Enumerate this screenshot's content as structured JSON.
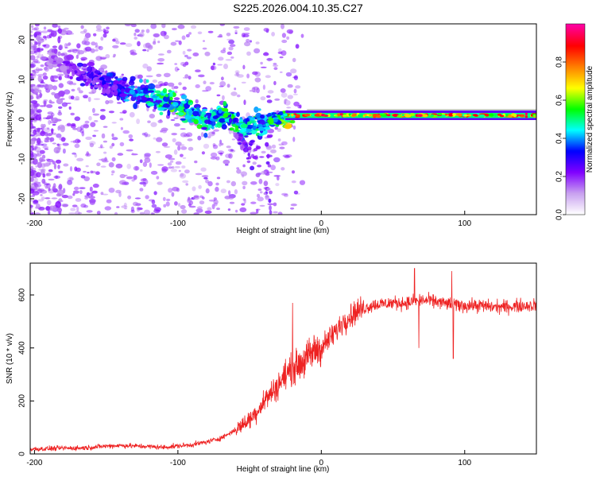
{
  "title": "S225.2026.004.10.35.C27",
  "chart_data": [
    {
      "type": "heatmap",
      "name": "spectrogram",
      "xlabel": "Height of straight line (km)",
      "ylabel": "Frequency (Hz)",
      "xlim": [
        -203,
        150
      ],
      "ylim": [
        -24,
        24
      ],
      "xticks": [
        -200,
        -100,
        0,
        100
      ],
      "yticks": [
        -20,
        -10,
        0,
        10,
        20
      ],
      "colorbar": {
        "label": "Normalized spectral amplitude",
        "range": [
          0,
          1
        ],
        "ticks": [
          "0.0",
          "0.2",
          "0.4",
          "0.6",
          "0.8"
        ],
        "tick_values": [
          0.0,
          0.2,
          0.4,
          0.6,
          0.8
        ],
        "colors": [
          "#ffffff",
          "#c8a0f0",
          "#8000ff",
          "#0000ff",
          "#00ffff",
          "#00ff00",
          "#ffff00",
          "#ff8000",
          "#ff0000",
          "#ff00a0"
        ]
      },
      "ridge": [
        {
          "x": -185,
          "freq": 15,
          "amp": 0.18
        },
        {
          "x": -165,
          "freq": 11,
          "amp": 0.28
        },
        {
          "x": -150,
          "freq": 9,
          "amp": 0.3
        },
        {
          "x": -135,
          "freq": 7,
          "amp": 0.4
        },
        {
          "x": -120,
          "freq": 6,
          "amp": 0.45
        },
        {
          "x": -105,
          "freq": 4,
          "amp": 0.55
        },
        {
          "x": -90,
          "freq": 2,
          "amp": 0.55
        },
        {
          "x": -80,
          "freq": -1,
          "amp": 0.45
        },
        {
          "x": -70,
          "freq": 1,
          "amp": 0.5
        },
        {
          "x": -55,
          "freq": -2,
          "amp": 0.5
        },
        {
          "x": -40,
          "freq": -1,
          "amp": 0.45
        },
        {
          "x": -30,
          "freq": 0,
          "amp": 0.55
        },
        {
          "x": -20,
          "freq": 0,
          "amp": 0.85
        },
        {
          "x": 0,
          "freq": 2,
          "amp": 0.7
        },
        {
          "x": 20,
          "freq": 1,
          "amp": 0.9
        },
        {
          "x": 50,
          "freq": 1,
          "amp": 0.9
        },
        {
          "x": 80,
          "freq": 1,
          "amp": 0.88
        },
        {
          "x": 110,
          "freq": 1,
          "amp": 0.9
        },
        {
          "x": 150,
          "freq": 1,
          "amp": 0.9
        }
      ]
    },
    {
      "type": "line",
      "name": "snr",
      "xlabel": "Height of straight line (km)",
      "ylabel": "SNR (10 * v/v)",
      "xlim": [
        -203,
        150
      ],
      "ylim": [
        0,
        720
      ],
      "xticks": [
        -200,
        -100,
        0,
        100
      ],
      "yticks": [
        0,
        200,
        400,
        600
      ],
      "color": "#ee2222",
      "series": [
        {
          "name": "SNR",
          "x": [
            -203,
            -190,
            -180,
            -170,
            -160,
            -150,
            -140,
            -130,
            -120,
            -110,
            -100,
            -90,
            -80,
            -70,
            -60,
            -50,
            -45,
            -40,
            -35,
            -30,
            -25,
            -20,
            -15,
            -10,
            -5,
            0,
            5,
            10,
            15,
            20,
            25,
            30,
            35,
            40,
            50,
            60,
            70,
            80,
            90,
            100,
            110,
            120,
            130,
            140,
            150
          ],
          "y": [
            18,
            20,
            22,
            22,
            25,
            30,
            32,
            30,
            28,
            25,
            30,
            35,
            45,
            60,
            90,
            130,
            160,
            200,
            230,
            260,
            300,
            320,
            340,
            360,
            390,
            400,
            430,
            460,
            500,
            520,
            540,
            550,
            560,
            565,
            570,
            570,
            580,
            575,
            565,
            560,
            560,
            555,
            555,
            560,
            560
          ]
        }
      ],
      "spikes": [
        {
          "x": -20,
          "y": 570
        },
        {
          "x": 65,
          "y": 700
        },
        {
          "x": 68,
          "y": 400
        },
        {
          "x": 91,
          "y": 690
        },
        {
          "x": 92,
          "y": 360
        }
      ]
    }
  ]
}
